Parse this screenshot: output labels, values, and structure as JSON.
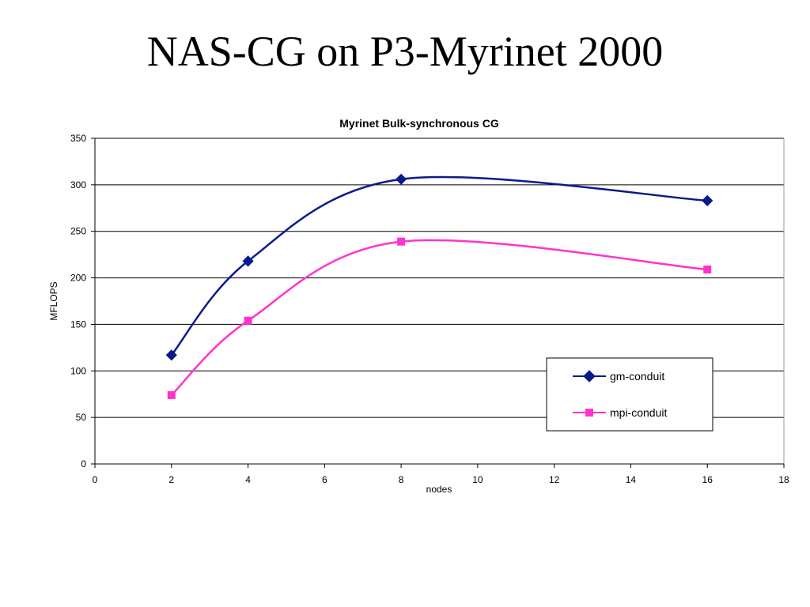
{
  "slide": {
    "title": "NAS-CG on P3-Myrinet 2000"
  },
  "colors": {
    "gm": "#0A1A8A",
    "mpi": "#FF33CC",
    "gridline": "#000000"
  },
  "chart_data": {
    "type": "line",
    "title": "Myrinet Bulk-synchronous CG",
    "xlabel": "nodes",
    "ylabel": "MFLOPS",
    "xlim": [
      0,
      18
    ],
    "ylim": [
      0,
      350
    ],
    "xticks": [
      0,
      2,
      4,
      6,
      8,
      10,
      12,
      14,
      16,
      18
    ],
    "yticks": [
      0,
      50,
      100,
      150,
      200,
      250,
      300,
      350
    ],
    "grid": "horizontal major gridlines",
    "legend_position": "lower-right",
    "smoothed": true,
    "series": [
      {
        "name": "gm-conduit",
        "marker": "diamond",
        "color": "#0A1A8A",
        "x": [
          2,
          4,
          8,
          16
        ],
        "y": [
          117,
          218,
          306,
          283
        ]
      },
      {
        "name": "mpi-conduit",
        "marker": "square",
        "color": "#FF33CC",
        "x": [
          2,
          4,
          8,
          16
        ],
        "y": [
          74,
          154,
          239,
          209
        ]
      }
    ]
  }
}
